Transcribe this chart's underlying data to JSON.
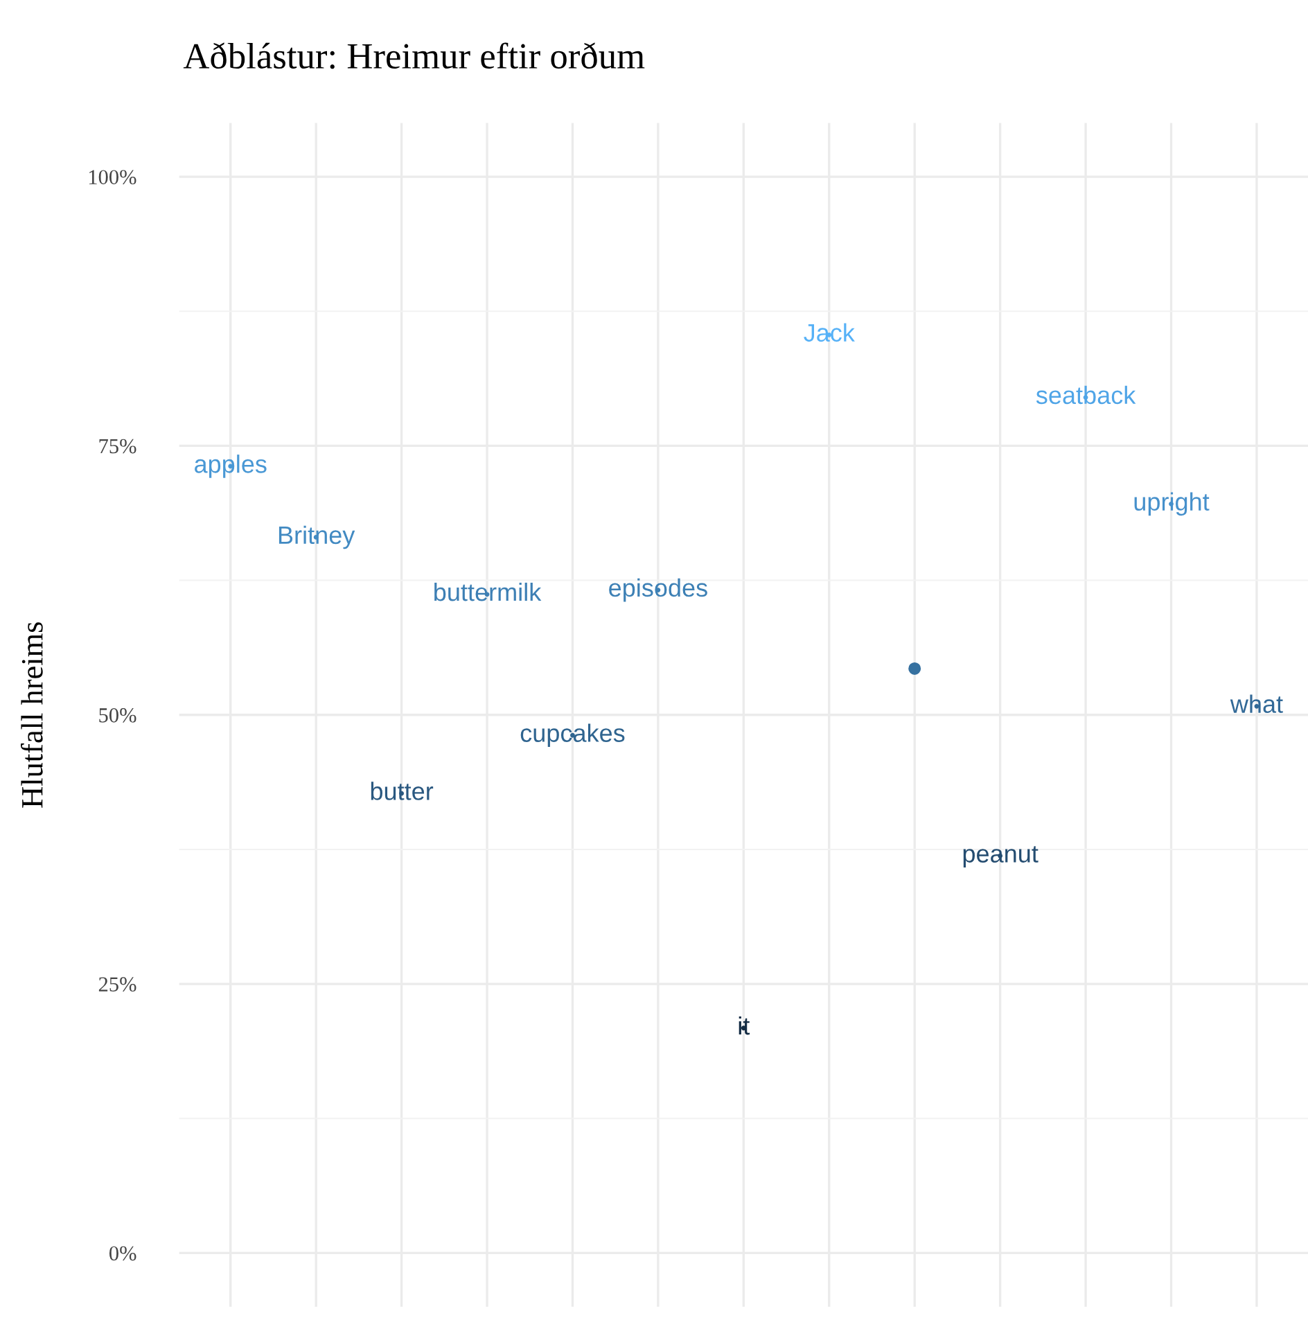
{
  "chart_data": {
    "type": "scatter",
    "title": "Aðblástur: Hreimur eftir orðum",
    "ylabel": "Hlutfall hreims",
    "categories": [
      "apples",
      "Britney",
      "butter",
      "buttermilk",
      "cupcakes",
      "episodes",
      "it",
      "Jack",
      null,
      "peanut",
      "seatback",
      "upright",
      "what"
    ],
    "values": [
      73.1,
      66.5,
      42.7,
      61.2,
      48.1,
      61.6,
      20.9,
      85.3,
      54.3,
      36.9,
      79.5,
      69.6,
      50.8
    ],
    "colors": [
      "#4998d5",
      "#428ac2",
      "#2a5880",
      "#3d7fb4",
      "#2f648f",
      "#3d80b5",
      "#132b43",
      "#56b1f7",
      "#3671a0",
      "#244c70",
      "#50a5e7",
      "#4690cb",
      "#326997"
    ],
    "ylim": [
      -5,
      105
    ],
    "yticks": [
      {
        "value": 0,
        "label": "0%"
      },
      {
        "value": 25,
        "label": "25%"
      },
      {
        "value": 50,
        "label": "50%"
      },
      {
        "value": 75,
        "label": "75%"
      },
      {
        "value": 100,
        "label": "100%"
      }
    ],
    "grid": true,
    "tick_labels": "y",
    "legend": false
  }
}
